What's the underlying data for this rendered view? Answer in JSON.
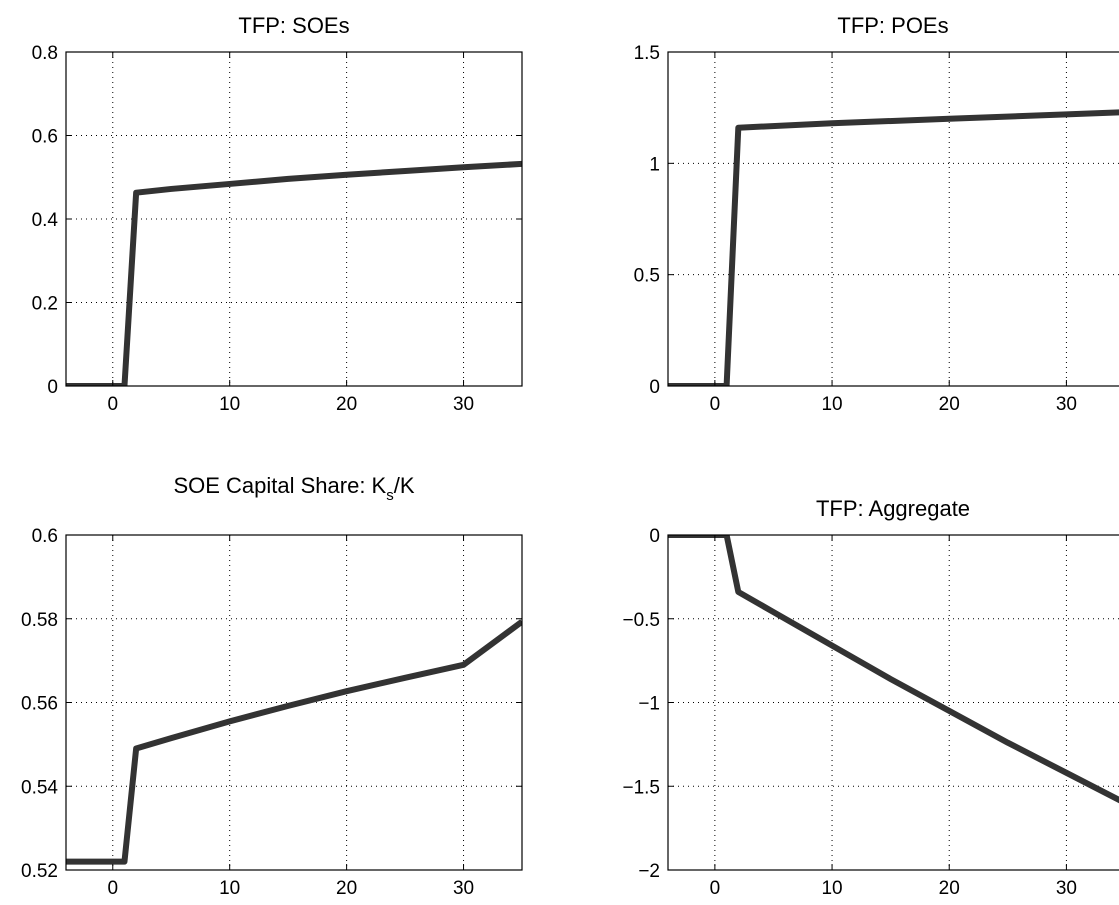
{
  "chart_data": [
    {
      "type": "line",
      "title": "TFP: SOEs",
      "xlim": [
        -4,
        35
      ],
      "ylim": [
        0,
        0.8
      ],
      "xticks": [
        0,
        10,
        20,
        30
      ],
      "yticks": [
        0,
        0.2,
        0.4,
        0.6,
        0.8
      ],
      "xtick_labels": [
        "0",
        "10",
        "20",
        "30"
      ],
      "ytick_labels": [
        "0",
        "0.2",
        "0.4",
        "0.6",
        "0.8"
      ],
      "grid": true,
      "color": "#333333",
      "x": [
        -4,
        1,
        2,
        5,
        10,
        15,
        20,
        25,
        30,
        35
      ],
      "y": [
        0,
        0,
        0.463,
        0.472,
        0.484,
        0.496,
        0.506,
        0.515,
        0.524,
        0.532
      ]
    },
    {
      "type": "line",
      "title": "TFP: POEs",
      "xlim": [
        -4,
        35
      ],
      "ylim": [
        0,
        1.5
      ],
      "xticks": [
        0,
        10,
        20,
        30
      ],
      "yticks": [
        0,
        0.5,
        1,
        1.5
      ],
      "xtick_labels": [
        "0",
        "10",
        "20",
        "30"
      ],
      "ytick_labels": [
        "0",
        "0.5",
        "1",
        "1.5"
      ],
      "grid": true,
      "color": "#333333",
      "x": [
        -4,
        1,
        2,
        10,
        20,
        30,
        35
      ],
      "y": [
        0,
        0,
        1.16,
        1.18,
        1.2,
        1.22,
        1.23
      ]
    },
    {
      "type": "line",
      "title_main": "SOE Capital Share: K",
      "title_sub": "s",
      "title_tail": "/K",
      "xlim": [
        -4,
        35
      ],
      "ylim": [
        0.52,
        0.6
      ],
      "xticks": [
        0,
        10,
        20,
        30
      ],
      "yticks": [
        0.52,
        0.54,
        0.56,
        0.58,
        0.6
      ],
      "xtick_labels": [
        "0",
        "10",
        "20",
        "30"
      ],
      "ytick_labels": [
        "0.52",
        "0.54",
        "0.56",
        "0.58",
        "0.6"
      ],
      "grid": true,
      "color": "#333333",
      "x": [
        -4,
        1,
        2,
        5,
        10,
        15,
        20,
        25,
        30,
        35
      ],
      "y": [
        0.522,
        0.522,
        0.549,
        0.5515,
        0.5555,
        0.5592,
        0.5627,
        0.5659,
        0.569,
        0.5793
      ]
    },
    {
      "type": "line",
      "title": "TFP: Aggregate",
      "xlim": [
        -4,
        35
      ],
      "ylim": [
        -2,
        0
      ],
      "xticks": [
        0,
        10,
        20,
        30
      ],
      "yticks": [
        -2,
        -1.5,
        -1,
        -0.5,
        0
      ],
      "xtick_labels": [
        "0",
        "10",
        "20",
        "30"
      ],
      "ytick_labels": [
        "−2",
        "−1.5",
        "−1",
        "−0.5",
        "0"
      ],
      "grid": true,
      "color": "#333333",
      "x": [
        -4,
        1,
        2,
        5,
        10,
        15,
        20,
        25,
        30,
        35
      ],
      "y": [
        0,
        0,
        -0.34,
        -0.46,
        -0.66,
        -0.86,
        -1.05,
        -1.24,
        -1.42,
        -1.6
      ]
    }
  ]
}
